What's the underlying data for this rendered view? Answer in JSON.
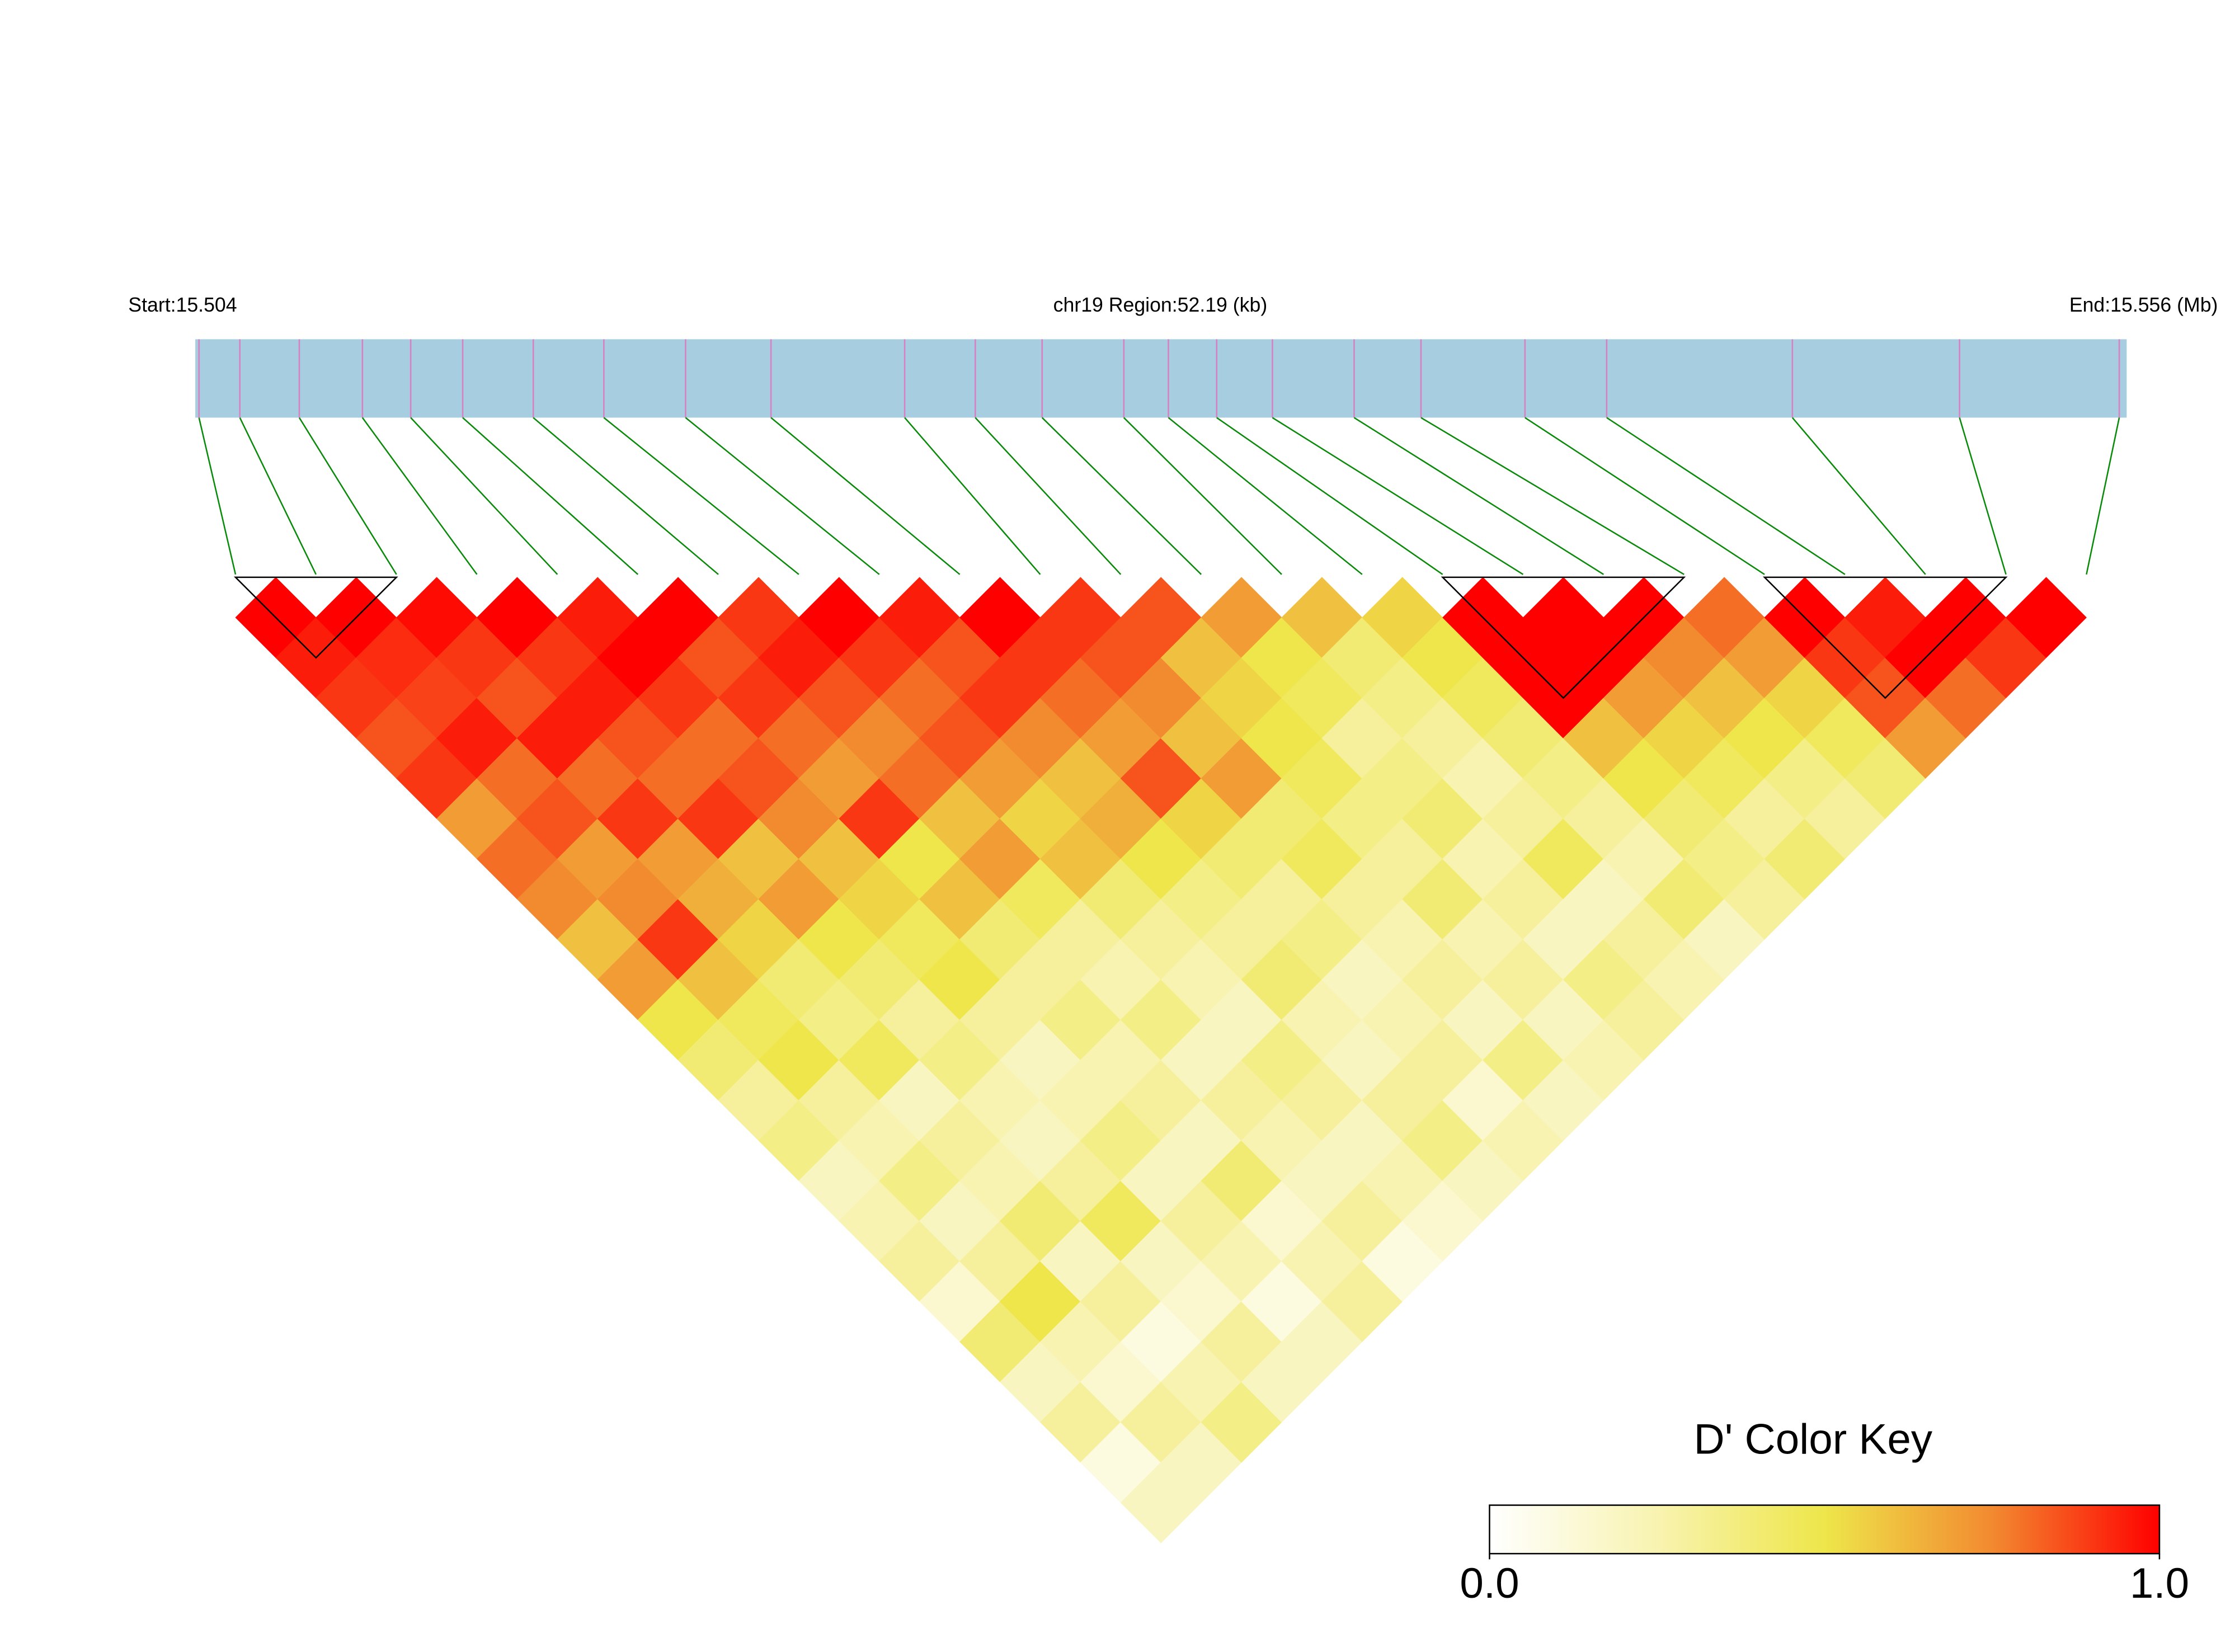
{
  "chart_data": {
    "type": "ld_heatmap",
    "start_label": "Start:15.504",
    "region_label": "chr19 Region:52.19 (kb)",
    "end_label": "End:15.556 (Mb)",
    "xlim": [
      15.504,
      15.556
    ],
    "positions": [
      15.5041,
      15.5052,
      15.5068,
      15.5085,
      15.5098,
      15.5112,
      15.5131,
      15.515,
      15.5172,
      15.5195,
      15.5231,
      15.525,
      15.5268,
      15.529,
      15.5302,
      15.5315,
      15.533,
      15.5352,
      15.537,
      15.5398,
      15.542,
      15.547,
      15.5515,
      15.5558
    ],
    "dprime": [
      [
        1,
        0.95,
        0.9,
        0.85,
        0.9,
        0.7,
        0.8,
        0.75,
        0.6,
        0.7,
        0.5,
        0.4,
        0.3,
        0.35,
        0.2,
        0.25,
        0.3,
        0.15,
        0.4,
        0.2,
        0.3,
        0.1,
        0.2
      ],
      [
        1,
        0.92,
        0.88,
        0.95,
        0.8,
        0.85,
        0.7,
        0.75,
        0.9,
        0.6,
        0.45,
        0.5,
        0.3,
        0.25,
        0.35,
        0.2,
        0.3,
        0.5,
        0.25,
        0.15,
        0.3,
        0.2
      ],
      [
        0.98,
        0.9,
        0.85,
        0.95,
        0.8,
        0.9,
        0.7,
        0.65,
        0.55,
        0.4,
        0.35,
        0.45,
        0.2,
        0.3,
        0.25,
        0.4,
        0.2,
        0.3,
        0.1,
        0.25,
        0.35
      ],
      [
        1,
        0.9,
        0.95,
        0.85,
        0.8,
        0.9,
        0.6,
        0.7,
        0.5,
        0.4,
        0.3,
        0.35,
        0.25,
        0.2,
        0.3,
        0.45,
        0.2,
        0.15,
        0.3,
        0.2
      ],
      [
        0.95,
        1,
        0.9,
        0.8,
        0.85,
        0.75,
        0.6,
        0.55,
        0.45,
        0.5,
        0.3,
        0.2,
        0.25,
        0.35,
        0.2,
        0.3,
        0.25,
        0.1,
        0.2
      ],
      [
        1,
        0.85,
        0.9,
        0.8,
        0.7,
        0.9,
        0.5,
        0.6,
        0.4,
        0.3,
        0.35,
        0.25,
        0.3,
        0.2,
        0.4,
        0.15,
        0.25,
        0.3
      ],
      [
        0.9,
        0.95,
        0.85,
        0.75,
        0.8,
        0.6,
        0.7,
        0.45,
        0.3,
        0.25,
        0.35,
        0.2,
        0.3,
        0.25,
        0.2,
        0.3,
        0.1
      ],
      [
        1,
        0.9,
        0.8,
        0.85,
        0.7,
        0.55,
        0.6,
        0.4,
        0.3,
        0.25,
        0.2,
        0.35,
        0.3,
        0.2,
        0.25,
        0.15
      ],
      [
        0.95,
        0.85,
        0.9,
        0.75,
        0.6,
        0.65,
        0.5,
        0.35,
        0.3,
        0.4,
        0.25,
        0.2,
        0.3,
        0.35,
        0.2
      ],
      [
        1,
        0.9,
        0.8,
        0.7,
        0.85,
        0.55,
        0.4,
        0.3,
        0.35,
        0.2,
        0.25,
        0.3,
        0.15,
        0.25
      ],
      [
        0.9,
        0.85,
        0.75,
        0.6,
        0.7,
        0.4,
        0.45,
        0.3,
        0.25,
        0.3,
        0.2,
        0.35,
        0.2
      ],
      [
        0.85,
        0.6,
        0.55,
        0.5,
        0.45,
        0.35,
        0.3,
        0.4,
        0.25,
        0.3,
        0.2,
        0.25
      ],
      [
        0.7,
        0.5,
        0.45,
        0.3,
        0.35,
        0.4,
        0.25,
        0.3,
        0.2,
        0.35,
        0.3
      ],
      [
        0.6,
        0.4,
        0.35,
        0.3,
        0.25,
        0.3,
        0.45,
        0.2,
        0.3,
        0.25
      ],
      [
        0.55,
        0.5,
        0.45,
        0.4,
        0.35,
        0.3,
        0.25,
        0.4,
        0.2
      ],
      [
        1,
        1,
        1,
        0.6,
        0.5,
        0.4,
        0.35,
        0.3
      ],
      [
        1,
        1,
        0.7,
        0.55,
        0.45,
        0.3,
        0.4
      ],
      [
        1,
        0.75,
        0.6,
        0.5,
        0.35,
        0.3
      ],
      [
        0.8,
        0.7,
        0.55,
        0.45,
        0.4
      ],
      [
        1,
        0.9,
        0.85,
        0.7
      ],
      [
        0.95,
        1,
        0.8
      ],
      [
        1,
        0.9
      ],
      [
        1
      ]
    ],
    "blocks": [
      [
        0,
        2
      ],
      [
        15,
        18
      ],
      [
        19,
        22
      ]
    ],
    "bar_color": "#a6cde0",
    "snp_color": "#d97fc4",
    "link_color": "#0a8a0a",
    "colormap": [
      "#ffffff",
      "#f8f3b0",
      "#eee64a",
      "#f28a30",
      "#ff0000"
    ],
    "key_title": "D' Color Key",
    "key_ticks": [
      {
        "value": 0,
        "label": "0.0"
      },
      {
        "value": 1,
        "label": "1.0"
      }
    ]
  }
}
